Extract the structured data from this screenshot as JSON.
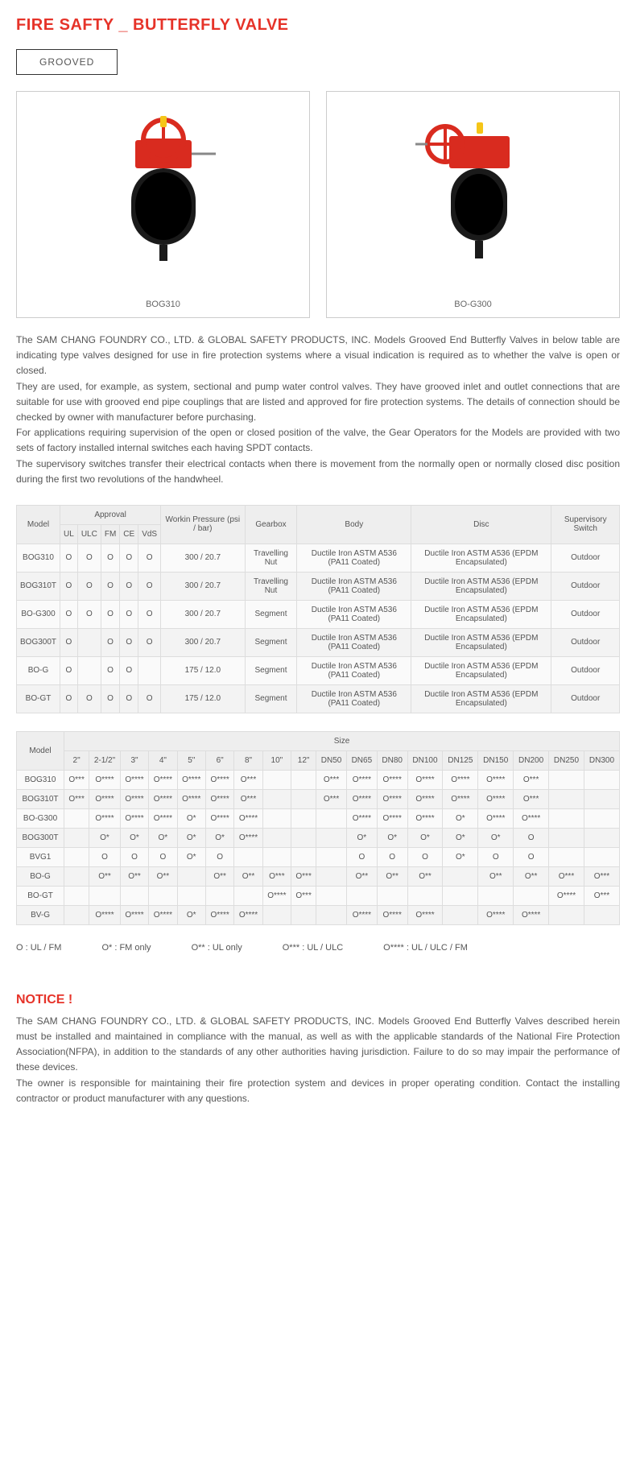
{
  "title": "FIRE SAFTY _ BUTTERFLY VALVE",
  "tab": "GROOVED",
  "images": [
    {
      "caption": "BOG310"
    },
    {
      "caption": "BO-G300"
    }
  ],
  "description": "The SAM CHANG FOUNDRY CO., LTD. & GLOBAL SAFETY PRODUCTS, INC. Models Grooved End Butterfly Valves in below table are indicating type valves designed for use in fire protection systems where a visual indication is required as to whether the valve is open or closed.\nThey are used, for example, as system, sectional and pump water control valves. They have grooved inlet and outlet connections that are suitable for use with grooved end pipe couplings that are listed and approved for fire protection systems. The details of connection should be checked by owner with manufacturer before purchasing.\nFor applications requiring supervision of the open or closed position of the valve, the Gear Operators for the Models are provided with two sets of factory installed internal switches each having SPDT contacts.\nThe supervisory switches transfer their electrical contacts when there is movement from the normally open or normally closed disc position during the first two revolutions of the handwheel.",
  "table1": {
    "headers_row1": [
      "Model",
      "Approval",
      "Workin Pressure (psi / bar)",
      "Gearbox",
      "Body",
      "Disc",
      "Supervisory Switch"
    ],
    "approval_sub": [
      "UL",
      "ULC",
      "FM",
      "CE",
      "VdS"
    ],
    "rows": [
      [
        "BOG310",
        "O",
        "O",
        "O",
        "O",
        "O",
        "300 / 20.7",
        "Travelling Nut",
        "Ductile Iron ASTM A536 (PA11 Coated)",
        "Ductile Iron ASTM A536 (EPDM Encapsulated)",
        "Outdoor"
      ],
      [
        "BOG310T",
        "O",
        "O",
        "O",
        "O",
        "O",
        "300 / 20.7",
        "Travelling Nut",
        "Ductile Iron ASTM A536 (PA11 Coated)",
        "Ductile Iron ASTM A536 (EPDM Encapsulated)",
        "Outdoor"
      ],
      [
        "BO-G300",
        "O",
        "O",
        "O",
        "O",
        "O",
        "300 / 20.7",
        "Segment",
        "Ductile Iron ASTM A536 (PA11 Coated)",
        "Ductile Iron ASTM A536 (EPDM Encapsulated)",
        "Outdoor"
      ],
      [
        "BOG300T",
        "O",
        "",
        "O",
        "O",
        "O",
        "300 / 20.7",
        "Segment",
        "Ductile Iron ASTM A536 (PA11 Coated)",
        "Ductile Iron ASTM A536 (EPDM Encapsulated)",
        "Outdoor"
      ],
      [
        "BO-G",
        "O",
        "",
        "O",
        "O",
        "",
        "175 / 12.0",
        "Segment",
        "Ductile Iron ASTM A536 (PA11 Coated)",
        "Ductile Iron ASTM A536 (EPDM Encapsulated)",
        "Outdoor"
      ],
      [
        "BO-GT",
        "O",
        "O",
        "O",
        "O",
        "O",
        "175 / 12.0",
        "Segment",
        "Ductile Iron ASTM A536 (PA11 Coated)",
        "Ductile Iron ASTM A536 (EPDM Encapsulated)",
        "Outdoor"
      ]
    ]
  },
  "table2": {
    "header_main": [
      "Model",
      "Size"
    ],
    "size_sub": [
      "2\"",
      "2-1/2\"",
      "3\"",
      "4\"",
      "5\"",
      "6\"",
      "8\"",
      "10\"",
      "12\"",
      "DN50",
      "DN65",
      "DN80",
      "DN100",
      "DN125",
      "DN150",
      "DN200",
      "DN250",
      "DN300"
    ],
    "rows": [
      [
        "BOG310",
        "O***",
        "O****",
        "O****",
        "O****",
        "O****",
        "O****",
        "O***",
        "",
        "",
        "O***",
        "O****",
        "O****",
        "O****",
        "O****",
        "O****",
        "O***",
        "",
        ""
      ],
      [
        "BOG310T",
        "O***",
        "O****",
        "O****",
        "O****",
        "O****",
        "O****",
        "O***",
        "",
        "",
        "O***",
        "O****",
        "O****",
        "O****",
        "O****",
        "O****",
        "O***",
        "",
        ""
      ],
      [
        "BO-G300",
        "",
        "O****",
        "O****",
        "O****",
        "O*",
        "O****",
        "O****",
        "",
        "",
        "",
        "O****",
        "O****",
        "O****",
        "O*",
        "O****",
        "O****",
        "",
        ""
      ],
      [
        "BOG300T",
        "",
        "O*",
        "O*",
        "O*",
        "O*",
        "O*",
        "O****",
        "",
        "",
        "",
        "O*",
        "O*",
        "O*",
        "O*",
        "O*",
        "O",
        "",
        ""
      ],
      [
        "BVG1",
        "",
        "O",
        "O",
        "O",
        "O*",
        "O",
        "",
        "",
        "",
        "",
        "O",
        "O",
        "O",
        "O*",
        "O",
        "O",
        "",
        ""
      ],
      [
        "BO-G",
        "",
        "O**",
        "O**",
        "O**",
        "",
        "O**",
        "O**",
        "O***",
        "O***",
        "",
        "O**",
        "O**",
        "O**",
        "",
        "O**",
        "O**",
        "O***",
        "O***"
      ],
      [
        "BO-GT",
        "",
        "",
        "",
        "",
        "",
        "",
        "",
        "O****",
        "O***",
        "",
        "",
        "",
        "",
        "",
        "",
        "",
        "O****",
        "O***"
      ],
      [
        "BV-G",
        "",
        "O****",
        "O****",
        "O****",
        "O*",
        "O****",
        "O****",
        "",
        "",
        "",
        "O****",
        "O****",
        "O****",
        "",
        "O****",
        "O****",
        "",
        ""
      ]
    ]
  },
  "legend": [
    "O : UL / FM",
    "O* : FM only",
    "O** : UL only",
    "O*** : UL / ULC",
    "O**** : UL / ULC / FM"
  ],
  "notice_title": "NOTICE !",
  "notice_text": "The SAM CHANG FOUNDRY CO., LTD. & GLOBAL SAFETY PRODUCTS, INC. Models Grooved End Butterfly Valves described herein must be installed and maintained in compliance with the manual, as well as with the applicable standards of the National Fire Protection Association(NFPA), in addition to the standards of any other authorities having jurisdiction. Failure to do so may impair the performance of these devices.\nThe owner is responsible for maintaining their fire protection system and devices in proper operating condition. Contact the installing contractor or product manufacturer with any questions."
}
